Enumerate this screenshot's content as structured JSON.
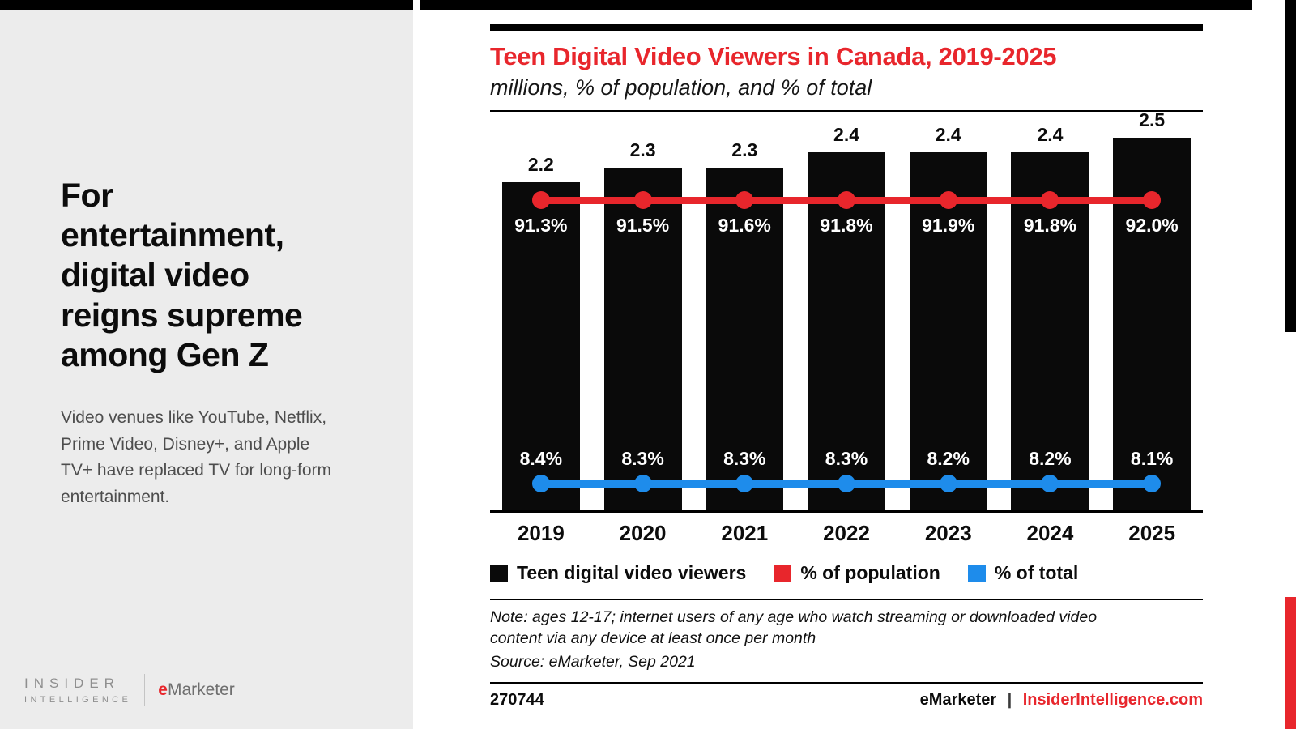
{
  "left_panel": {
    "headline": "For\nentertainment,\ndigital video\nreigns supreme\namong Gen Z",
    "body": "Video venues like YouTube, Netflix,\nPrime Video, Disney+, and Apple\nTV+ have replaced TV for long-form\nentertainment.",
    "logo": {
      "insider": "INSIDER",
      "intelligence": "INTELLIGENCE",
      "emarketer_e": "e",
      "emarketer_rest": "Marketer"
    }
  },
  "chart_data": {
    "type": "bar",
    "title": "Teen Digital Video Viewers in Canada, 2019-2025",
    "subtitle": "millions, % of population, and % of total",
    "categories": [
      "2019",
      "2020",
      "2021",
      "2022",
      "2023",
      "2024",
      "2025"
    ],
    "series": [
      {
        "name": "Teen digital video viewers",
        "type": "bar",
        "unit": "millions",
        "values": [
          2.2,
          2.3,
          2.3,
          2.4,
          2.4,
          2.4,
          2.5
        ]
      },
      {
        "name": "% of population",
        "type": "line",
        "unit": "percent",
        "values": [
          91.3,
          91.5,
          91.6,
          91.8,
          91.9,
          91.8,
          92.0
        ]
      },
      {
        "name": "% of total",
        "type": "line",
        "unit": "percent",
        "values": [
          8.4,
          8.3,
          8.3,
          8.3,
          8.2,
          8.2,
          8.1
        ]
      }
    ],
    "colors": {
      "bars": "#0a0a0a",
      "population_line": "#e8262c",
      "total_line": "#1e8ceb"
    },
    "legend_position": "bottom",
    "grid": false,
    "ylim_bars": [
      0,
      2.6
    ]
  },
  "chart_footer": {
    "note": "Note: ages 12-17; internet users of any age who watch streaming or downloaded video\ncontent via any device at least once per month",
    "source": "Source: eMarketer, Sep 2021",
    "chart_id": "270744",
    "brand": "eMarketer",
    "separator": "|",
    "site": "InsiderIntelligence.com"
  }
}
